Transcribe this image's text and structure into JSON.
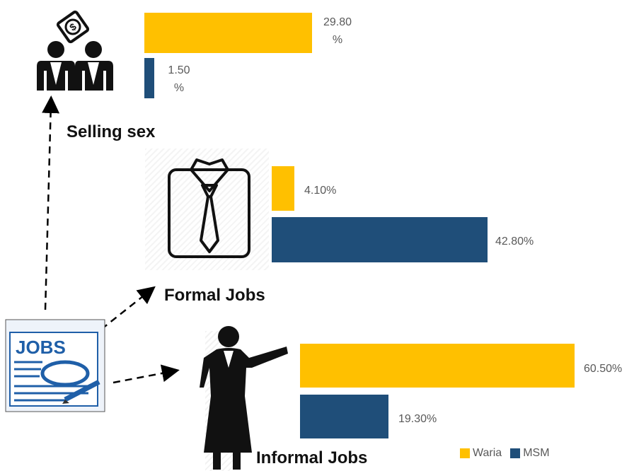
{
  "colors": {
    "waria": "#FFC000",
    "msm": "#1F4E79"
  },
  "chart_data": [
    {
      "type": "bar",
      "categories": [
        "Selling sex"
      ],
      "series": [
        {
          "name": "Waria",
          "values": [
            29.8
          ],
          "label": "29.80 %"
        },
        {
          "name": "MSM",
          "values": [
            1.5
          ],
          "label": "1.50 %"
        }
      ]
    },
    {
      "type": "bar",
      "categories": [
        "Formal Jobs"
      ],
      "series": [
        {
          "name": "Waria",
          "values": [
            4.1
          ],
          "label": "4.10%"
        },
        {
          "name": "MSM",
          "values": [
            42.8
          ],
          "label": "42.80%"
        }
      ]
    },
    {
      "type": "bar",
      "categories": [
        "Informal Jobs"
      ],
      "series": [
        {
          "name": "Waria",
          "values": [
            60.5
          ],
          "label": "60.50%"
        },
        {
          "name": "MSM",
          "values": [
            19.3
          ],
          "label": "19.30%"
        }
      ]
    }
  ],
  "labels": {
    "selling_sex": "Selling sex",
    "formal_jobs": "Formal Jobs",
    "informal_jobs": "Informal Jobs",
    "waria_val_1": "29.80",
    "waria_val_2": "%",
    "msm_val_1": "1.50",
    "msm_val_2": "%",
    "formal_waria": "4.10%",
    "formal_msm": "42.80%",
    "informal_waria": "60.50%",
    "informal_msm": "19.30%"
  },
  "legend": {
    "waria": "Waria",
    "msm": "MSM"
  },
  "icons": {
    "jobs_sign": "JOBS"
  }
}
